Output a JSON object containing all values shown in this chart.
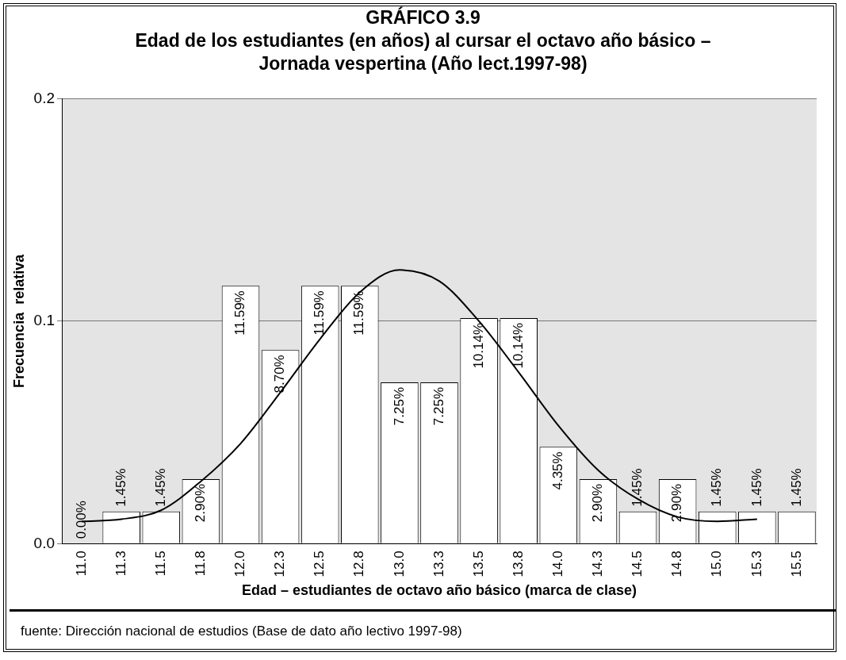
{
  "chart_data": {
    "type": "bar",
    "title": "GRÁFICO 3.9",
    "subtitle": "Edad de los estudiantes (en años) al cursar el octavo año básico – Jornada vespertina (Año lect.1997-98)",
    "xlabel": "Edad – estudiantes de octavo año básico (marca de clase)",
    "ylabel": "Frecuencia  relativa",
    "categories": [
      "11.0",
      "11.3",
      "11.5",
      "11.8",
      "12.0",
      "12.3",
      "12.5",
      "12.8",
      "13.0",
      "13.3",
      "13.5",
      "13.8",
      "14.0",
      "14.3",
      "14.5",
      "14.8",
      "15.0",
      "15.3",
      "15.5"
    ],
    "series": [
      {
        "color": "#ffffff",
        "values": [
          0,
          0.0145,
          0.0145,
          0.029,
          0.1159,
          0.087,
          0.1159,
          0.1159,
          0.0725,
          0.0725,
          0.1014,
          0.1014,
          0.0435,
          0.029,
          0.0145,
          0.029,
          0.0145,
          0.0145,
          0.0145
        ],
        "value_labels": [
          "0.00%",
          "1.45%",
          "1.45%",
          "2.90%",
          "11.59%",
          "8.70%",
          "11.59%",
          "11.59%",
          "7.25%",
          "7.25%",
          "10.14%",
          "10.14%",
          "4.35%",
          "2.90%",
          "1.45%",
          "2.90%",
          "1.45%",
          "1.45%",
          "1.45%"
        ]
      },
      {
        "type": "line",
        "color": "#000000",
        "marker": "none",
        "values": [
          0.01,
          0.011,
          0.015,
          0.028,
          0.045,
          0.068,
          0.092,
          0.113,
          0.123,
          0.118,
          0.1,
          0.077,
          0.053,
          0.033,
          0.02,
          0.012,
          0.01,
          0.011,
          null
        ]
      }
    ],
    "ylim": [
      0,
      0.2
    ],
    "yticks": [
      {
        "value": 0,
        "label": "0.0"
      },
      {
        "value": 0.1,
        "label": "0.1"
      },
      {
        "value": 0.2,
        "label": "0.2"
      }
    ],
    "grid": "y",
    "legend": false,
    "annotations": [
      "fuente: Dirección nacional de estudios (Base de dato año lectivo 1997-98)"
    ]
  }
}
